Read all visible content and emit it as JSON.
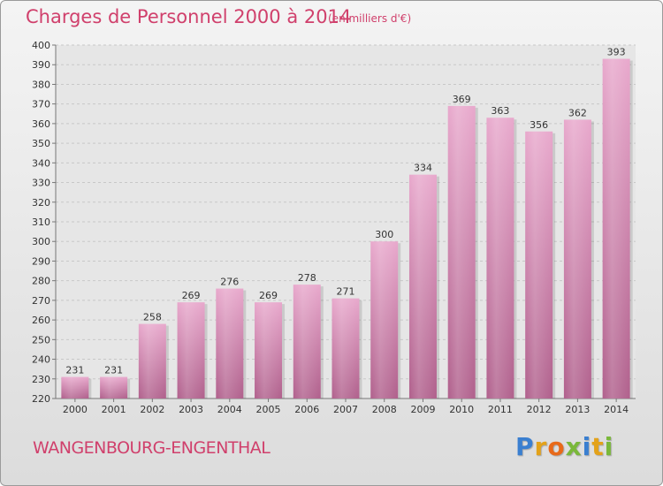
{
  "title": "Charges de Personnel 2000 à 2014",
  "subtitle": "(en milliers d'€)",
  "commune": "WANGENBOURG-ENGENTHAL",
  "logo": {
    "letters": [
      {
        "char": "P",
        "color": "#3a7fd0"
      },
      {
        "char": "r",
        "color": "#e3a21a"
      },
      {
        "char": "o",
        "color": "#e86a1a"
      },
      {
        "char": "x",
        "color": "#7ab83a"
      },
      {
        "char": "i",
        "color": "#3a7fd0"
      },
      {
        "char": "t",
        "color": "#e3a21a"
      },
      {
        "char": "i",
        "color": "#7ab83a"
      }
    ]
  },
  "chart_data": {
    "type": "bar",
    "categories": [
      "2000",
      "2001",
      "2002",
      "2003",
      "2004",
      "2005",
      "2006",
      "2007",
      "2008",
      "2009",
      "2010",
      "2011",
      "2012",
      "2013",
      "2014"
    ],
    "values": [
      231,
      231,
      258,
      269,
      276,
      269,
      278,
      271,
      300,
      334,
      369,
      363,
      356,
      362,
      393
    ],
    "title": "Charges de Personnel 2000 à 2014",
    "subtitle": "(en milliers d'€)",
    "xlabel": "",
    "ylabel": "",
    "ylim": [
      220,
      400
    ],
    "yticks": [
      220,
      230,
      240,
      250,
      260,
      270,
      280,
      290,
      300,
      310,
      320,
      330,
      340,
      350,
      360,
      370,
      380,
      390,
      400
    ],
    "grid": true,
    "bar_color": "#d882b0",
    "bar_color_dark": "#b8648f"
  }
}
